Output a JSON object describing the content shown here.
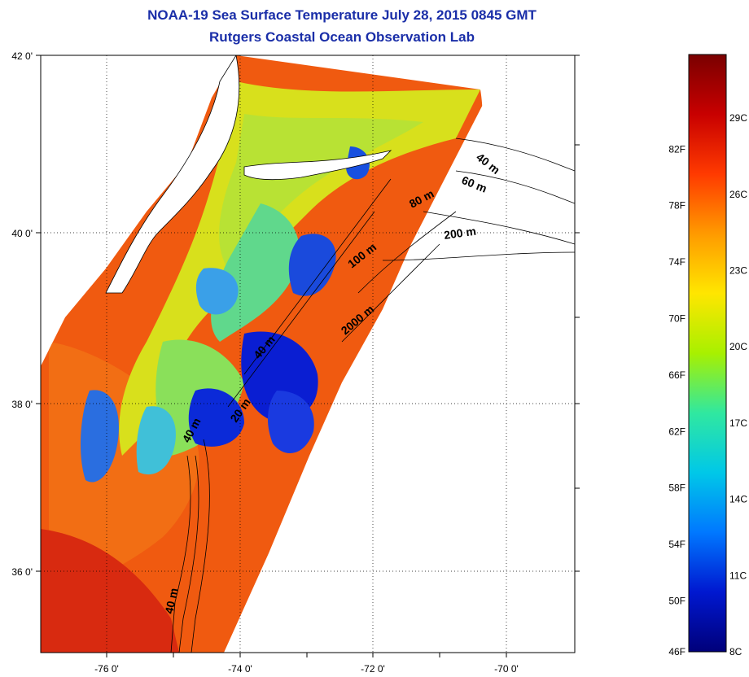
{
  "header": {
    "title": "NOAA-19 Sea Surface Temperature July 28, 2015 0845 GMT",
    "subtitle": "Rutgers Coastal Ocean Observation Lab"
  },
  "map": {
    "lat_labels": [
      "42 0'",
      "40 0'",
      "38 0'",
      "36 0'"
    ],
    "lon_labels": [
      "-76 0'",
      "-74 0'",
      "-72 0'",
      "-70 0'"
    ],
    "grid": "dotted",
    "isobath_labels": [
      "40 m",
      "60 m",
      "80 m",
      "200 m",
      "100 m",
      "2000 m",
      "40 m",
      "20 m",
      "40 m",
      "40 m"
    ]
  },
  "colorbar": {
    "fahrenheit_labels": [
      "82F",
      "78F",
      "74F",
      "70F",
      "66F",
      "62F",
      "58F",
      "54F",
      "50F",
      "46F"
    ],
    "celsius_labels": [
      "29C",
      "26C",
      "23C",
      "20C",
      "17C",
      "14C",
      "11C",
      "8C"
    ],
    "stops": [
      "#7a0000",
      "#c80000",
      "#ff3a00",
      "#ff9a00",
      "#ffe600",
      "#a8f000",
      "#30e8a0",
      "#00c8e8",
      "#0078ff",
      "#0018d0",
      "#00007a"
    ]
  }
}
